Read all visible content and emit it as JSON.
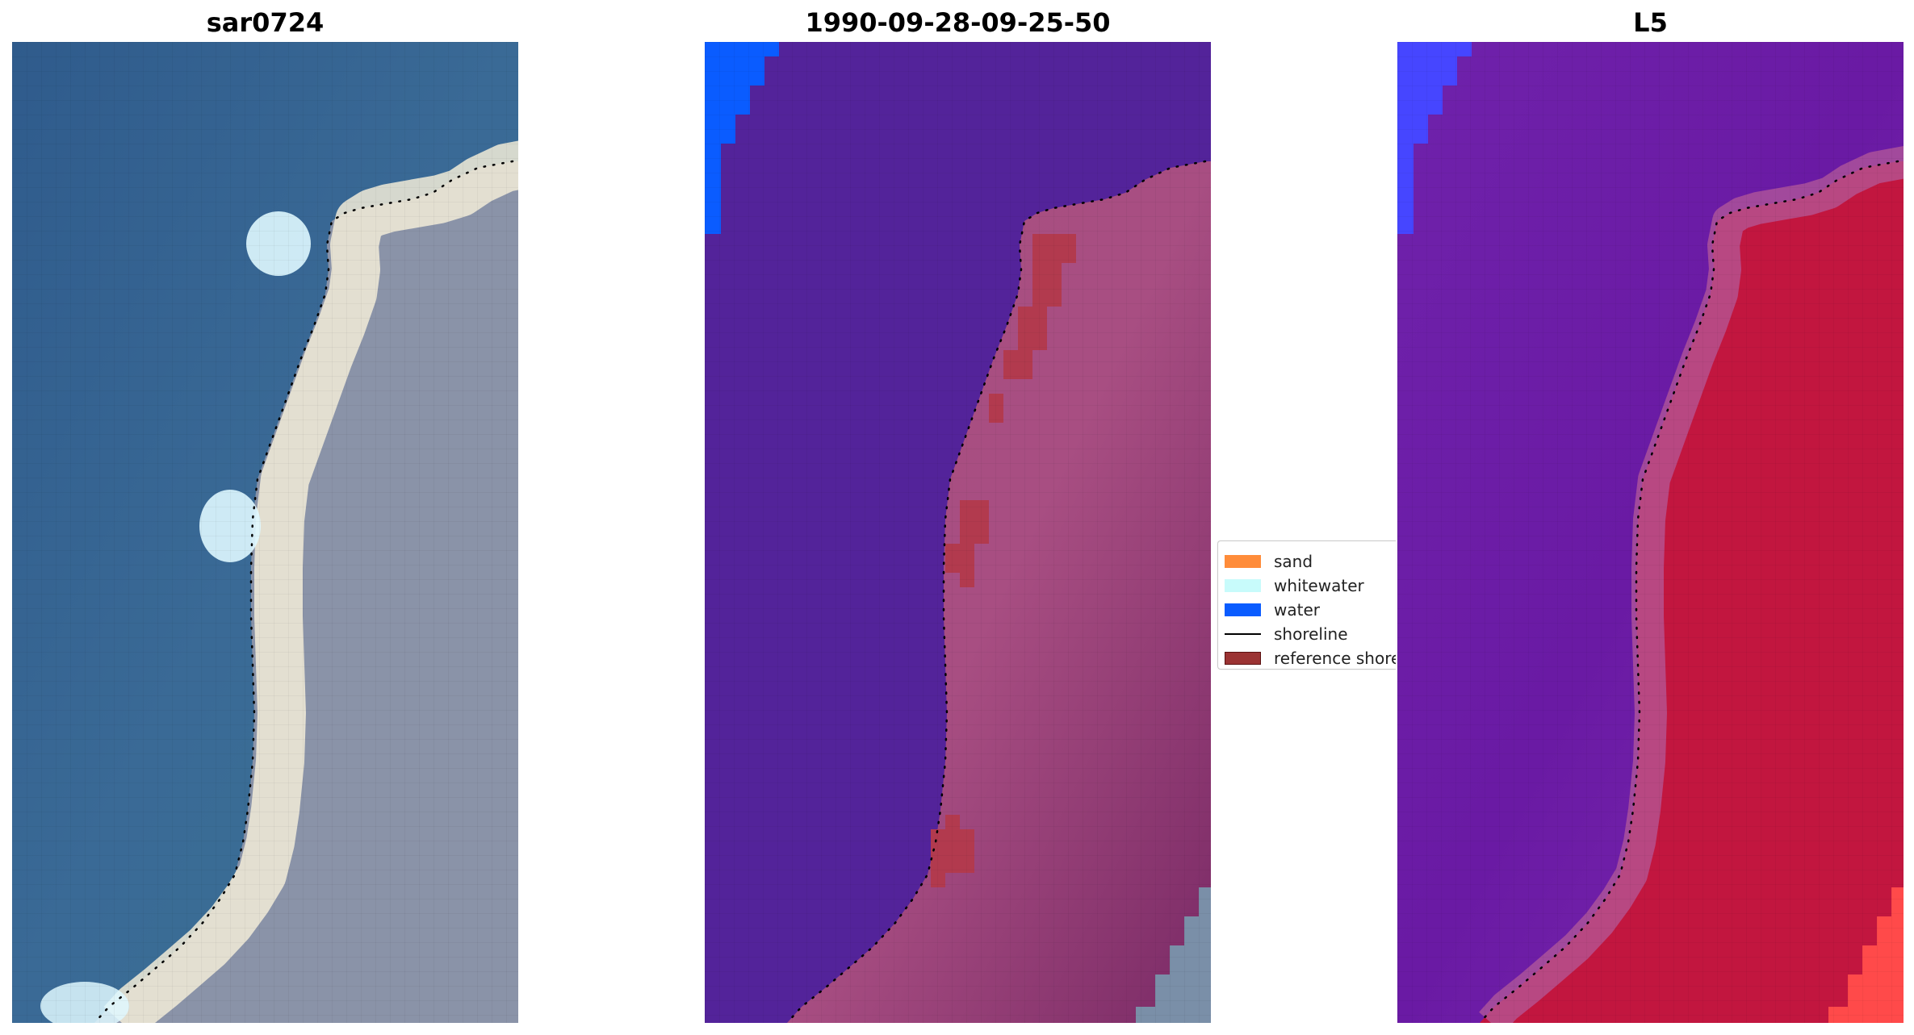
{
  "panels": [
    {
      "title": "sar0724"
    },
    {
      "title": "1990-09-28-09-25-50"
    },
    {
      "title": "L5"
    }
  ],
  "legend": {
    "items": [
      {
        "label": "sand",
        "kind": "patch",
        "color": "#ff8c3a"
      },
      {
        "label": "whitewater",
        "kind": "patch",
        "color": "#c8fbfb"
      },
      {
        "label": "water",
        "kind": "patch",
        "color": "#0a5cff"
      },
      {
        "label": "shoreline",
        "kind": "line",
        "color": "#000000"
      },
      {
        "label": "reference shoreline",
        "kind": "patch",
        "color": "#9b3333",
        "edge": "#5a1010"
      }
    ]
  },
  "colors": {
    "sea_rgb": "#3a6a96",
    "beach_rgb": "#f2ecd8",
    "land_rgb": "#8a93a8",
    "class_water_bg": "#53239a",
    "class_water_blue": "#0a5cff",
    "class_land": "#a84e82",
    "class_ref": "#b23a4e",
    "l5_water": "#6a1aa4",
    "l5_land": "#c2163f",
    "l5_blue": "#4646ff"
  }
}
